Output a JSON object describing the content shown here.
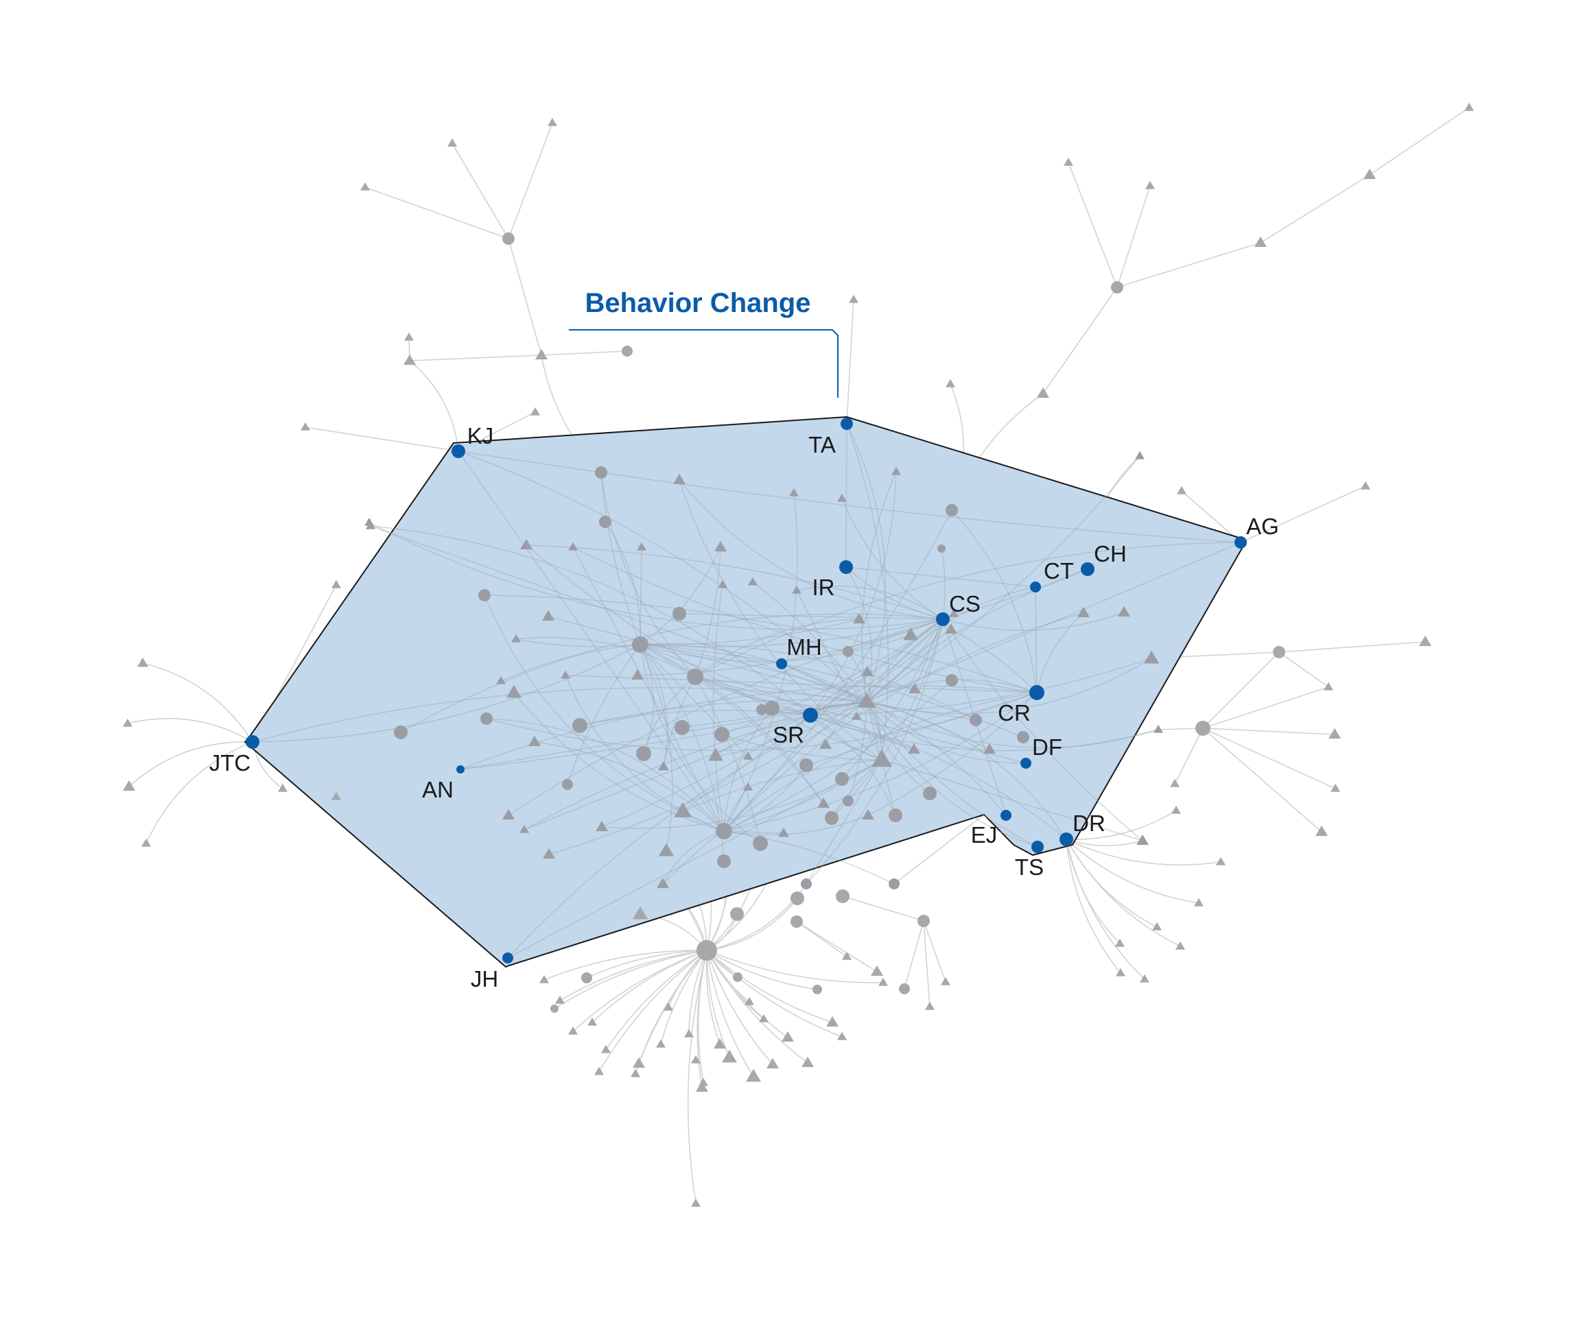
{
  "title": "Behavior Change",
  "colors": {
    "hull_fill": "#c0d6ea",
    "hull_stroke": "#1a1a1a",
    "highlight_node": "#0a5ca8",
    "title_color": "#0a5ca8",
    "grey_node": "#a8a8a8",
    "grey_edge": "#d2d2d2",
    "label_color": "#1a1a1a"
  },
  "labeled_nodes": [
    {
      "id": "TA",
      "label": "TA"
    },
    {
      "id": "KJ",
      "label": "KJ"
    },
    {
      "id": "AG",
      "label": "AG"
    },
    {
      "id": "CH",
      "label": "CH"
    },
    {
      "id": "CT",
      "label": "CT"
    },
    {
      "id": "IR",
      "label": "IR"
    },
    {
      "id": "CS",
      "label": "CS"
    },
    {
      "id": "MH",
      "label": "MH"
    },
    {
      "id": "SR",
      "label": "SR"
    },
    {
      "id": "CR",
      "label": "CR"
    },
    {
      "id": "DF",
      "label": "DF"
    },
    {
      "id": "JTC",
      "label": "JTC"
    },
    {
      "id": "AN",
      "label": "AN"
    },
    {
      "id": "EJ",
      "label": "EJ"
    },
    {
      "id": "DR",
      "label": "DR"
    },
    {
      "id": "TS",
      "label": "TS"
    },
    {
      "id": "JH",
      "label": "JH"
    }
  ],
  "node_shapes": {
    "circle": "circle-node",
    "triangle": "triangle-node"
  }
}
